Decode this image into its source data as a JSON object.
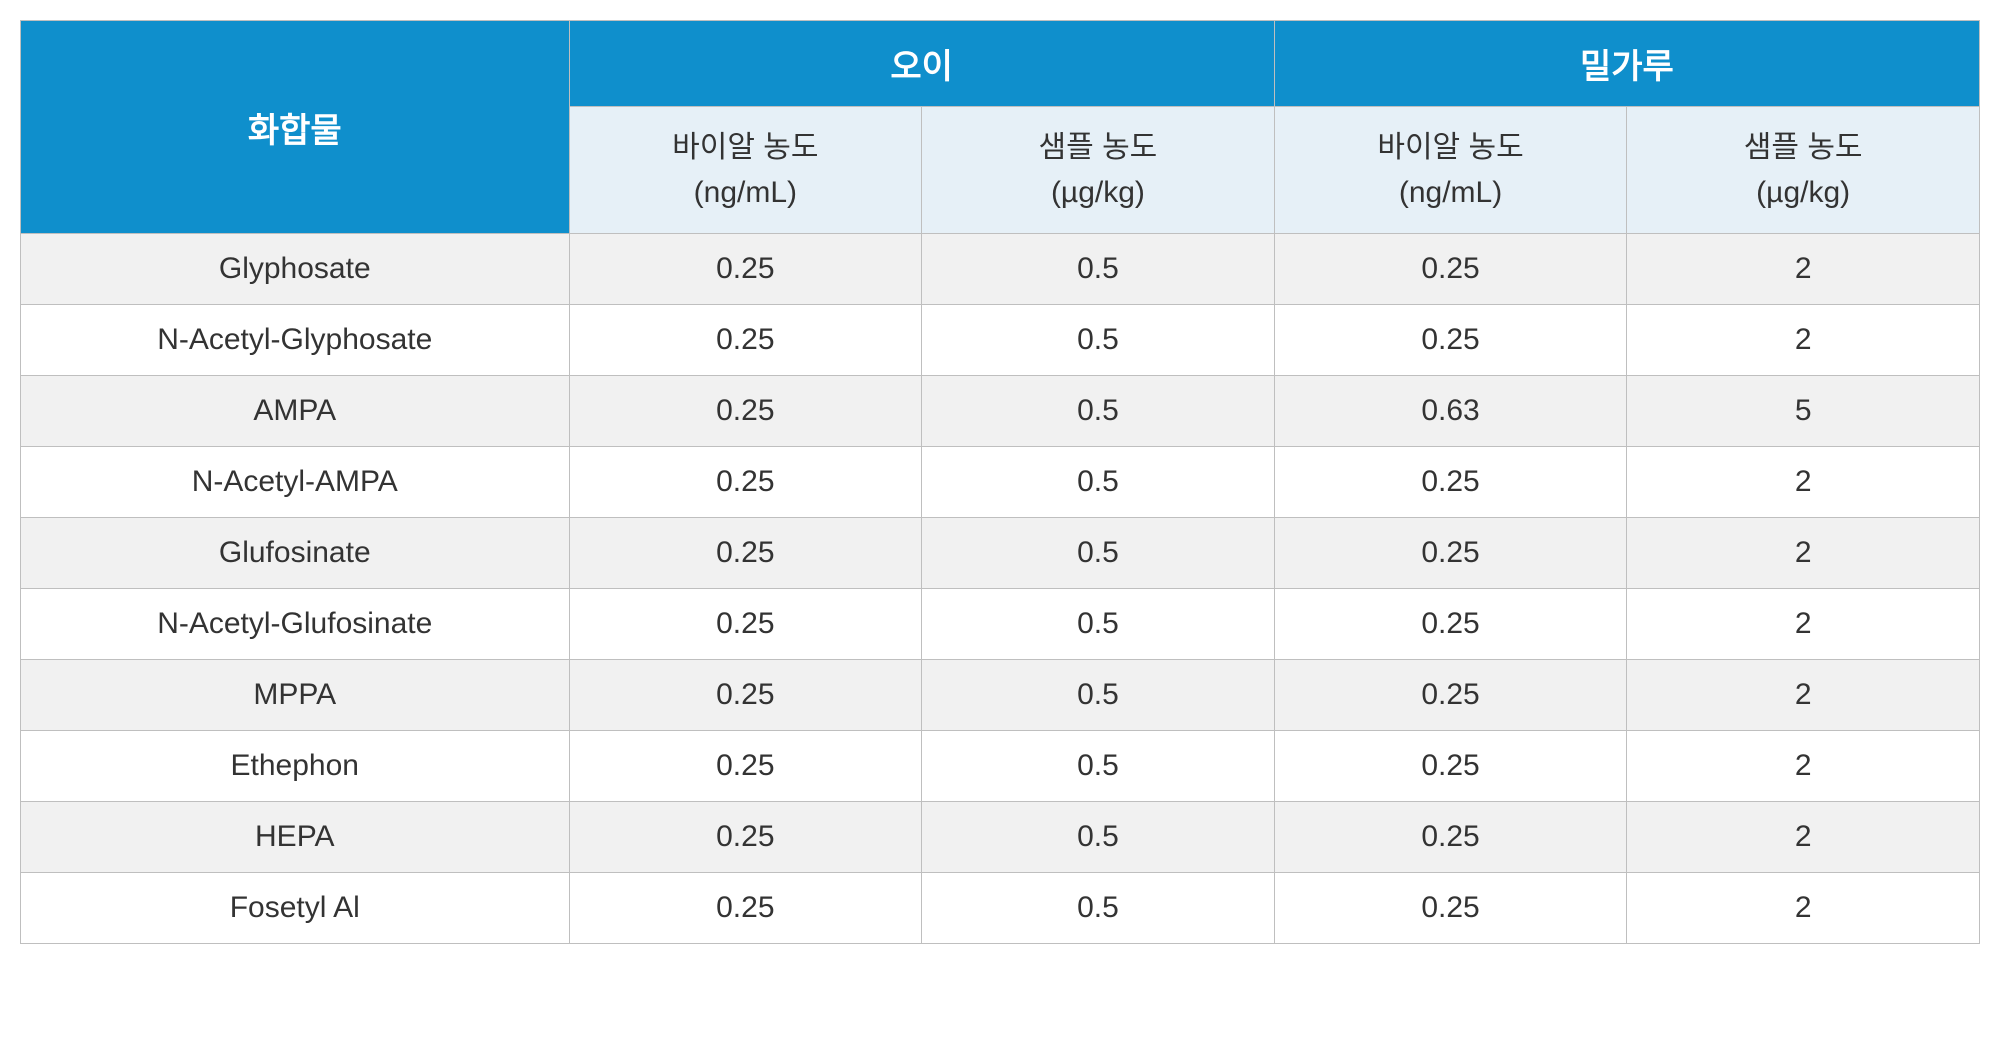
{
  "table": {
    "colors": {
      "header_bg": "#0f8fcc",
      "header_text": "#ffffff",
      "subheader_bg": "#e6f0f7",
      "subheader_text": "#333333",
      "row_odd_bg": "#f1f1f1",
      "row_even_bg": "#ffffff",
      "cell_text": "#333333",
      "border": "#bfbfbf"
    },
    "typography": {
      "header_fontsize_pt": 26,
      "subheader_fontsize_pt": 22,
      "cell_fontsize_pt": 22,
      "font_family": "Arial, Malgun Gothic"
    },
    "header": {
      "compound_label": "화합물",
      "groups": [
        {
          "label": "오이"
        },
        {
          "label": "밀가루"
        }
      ],
      "subcolumns": [
        {
          "label_line1": "바이알 농도",
          "label_line2": "(ng/mL)"
        },
        {
          "label_line1": "샘플 농도",
          "label_line2": "(µg/kg)"
        },
        {
          "label_line1": "바이알 농도",
          "label_line2": "(ng/mL)"
        },
        {
          "label_line1": "샘플 농도",
          "label_line2": "(µg/kg)"
        }
      ]
    },
    "rows": [
      {
        "compound": "Glyphosate",
        "v0": "0.25",
        "v1": "0.5",
        "v2": "0.25",
        "v3": "2"
      },
      {
        "compound": "N-Acetyl-Glyphosate",
        "v0": "0.25",
        "v1": "0.5",
        "v2": "0.25",
        "v3": "2"
      },
      {
        "compound": "AMPA",
        "v0": "0.25",
        "v1": "0.5",
        "v2": "0.63",
        "v3": "5"
      },
      {
        "compound": "N-Acetyl-AMPA",
        "v0": "0.25",
        "v1": "0.5",
        "v2": "0.25",
        "v3": "2"
      },
      {
        "compound": "Glufosinate",
        "v0": "0.25",
        "v1": "0.5",
        "v2": "0.25",
        "v3": "2"
      },
      {
        "compound": "N-Acetyl-Glufosinate",
        "v0": "0.25",
        "v1": "0.5",
        "v2": "0.25",
        "v3": "2"
      },
      {
        "compound": "MPPA",
        "v0": "0.25",
        "v1": "0.5",
        "v2": "0.25",
        "v3": "2"
      },
      {
        "compound": "Ethephon",
        "v0": "0.25",
        "v1": "0.5",
        "v2": "0.25",
        "v3": "2"
      },
      {
        "compound": "HEPA",
        "v0": "0.25",
        "v1": "0.5",
        "v2": "0.25",
        "v3": "2"
      },
      {
        "compound": "Fosetyl Al",
        "v0": "0.25",
        "v1": "0.5",
        "v2": "0.25",
        "v3": "2"
      }
    ]
  }
}
